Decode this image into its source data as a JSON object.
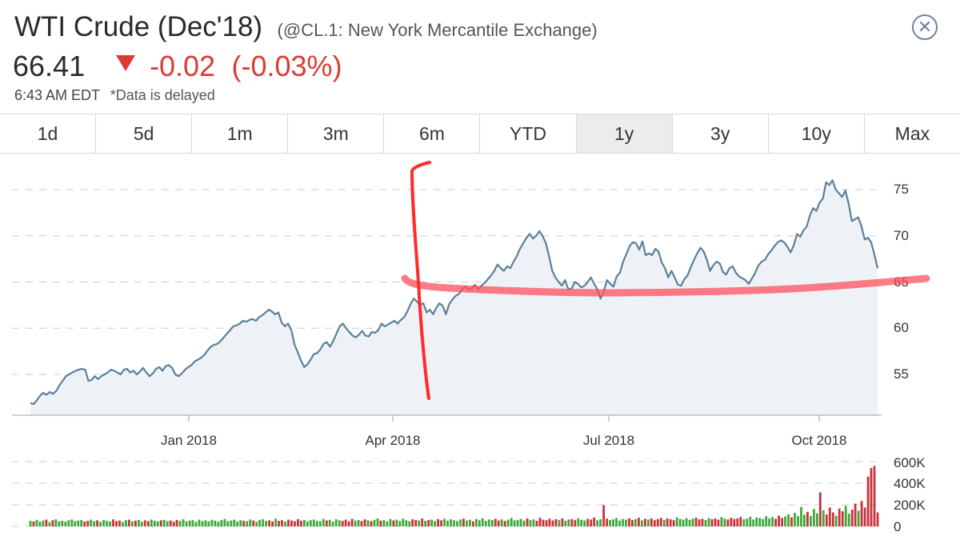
{
  "header": {
    "title": "WTI Crude (Dec'18)",
    "exchange": "(@CL.1: New York Mercantile Exchange)",
    "price": "66.41",
    "change": "-0.02",
    "change_pct": "(-0.03%)",
    "time": "6:43 AM EDT",
    "delayed_note": "*Data is delayed",
    "close_icon": "close-circle-icon"
  },
  "tabs": [
    {
      "label": "1d",
      "active": false
    },
    {
      "label": "5d",
      "active": false
    },
    {
      "label": "1m",
      "active": false
    },
    {
      "label": "3m",
      "active": false
    },
    {
      "label": "6m",
      "active": false
    },
    {
      "label": "YTD",
      "active": false
    },
    {
      "label": "1y",
      "active": true
    },
    {
      "label": "3y",
      "active": false
    },
    {
      "label": "10y",
      "active": false
    },
    {
      "label": "Max",
      "active": false
    }
  ],
  "colors": {
    "price_line": "#5a8099",
    "area_fill": "#eef2f6",
    "volume_up": "#3fa83a",
    "volume_down": "#c8323a",
    "marker": "#ff3b3b",
    "down": "#d93c34"
  },
  "chart_data": [
    {
      "type": "line",
      "y_ticks": [
        55,
        60,
        65,
        70,
        75
      ],
      "y_tick_labels": [
        "55",
        "60",
        "65",
        "70",
        "75"
      ],
      "x_tick_labels": [
        "Jan 2018",
        "Apr 2018",
        "Jul 2018",
        "Oct 2018"
      ],
      "ylim": [
        50.5,
        77
      ],
      "grid": true,
      "series": [
        {
          "x_start": "2017-10-23",
          "x_end": "2018-10-22",
          "values": [
            51.9,
            51.8,
            52.2,
            52.7,
            53.0,
            52.8,
            53.1,
            52.9,
            53.2,
            53.8,
            54.3,
            54.8,
            55.0,
            55.2,
            55.4,
            55.5,
            55.6,
            55.5,
            54.3,
            54.4,
            54.8,
            54.5,
            54.8,
            55.0,
            55.2,
            55.5,
            55.4,
            55.2,
            55.0,
            55.5,
            55.6,
            55.2,
            55.4,
            55.0,
            55.3,
            55.7,
            55.2,
            54.8,
            55.1,
            55.6,
            55.8,
            55.4,
            55.9,
            56.0,
            55.7,
            55.0,
            54.8,
            55.1,
            55.5,
            55.8,
            56.0,
            56.4,
            56.6,
            56.8,
            57.1,
            57.6,
            58.0,
            58.2,
            58.3,
            58.6,
            59.0,
            59.4,
            59.8,
            60.2,
            60.3,
            60.5,
            60.8,
            60.7,
            60.9,
            61.0,
            60.8,
            61.2,
            61.4,
            61.7,
            62.0,
            61.8,
            61.5,
            61.7,
            60.6,
            60.2,
            60.5,
            59.8,
            58.2,
            57.4,
            56.5,
            55.8,
            56.1,
            56.6,
            57.2,
            57.3,
            57.7,
            58.3,
            58.5,
            58.0,
            58.6,
            59.4,
            60.2,
            60.5,
            60.0,
            59.6,
            59.2,
            59.0,
            59.3,
            59.7,
            59.2,
            59.1,
            59.6,
            59.5,
            59.8,
            60.5,
            60.2,
            60.4,
            60.6,
            60.8,
            60.5,
            60.9,
            61.2,
            61.8,
            62.6,
            63.2,
            62.9,
            62.5,
            62.7,
            61.7,
            62.0,
            61.5,
            62.2,
            62.7,
            62.4,
            61.5,
            62.6,
            63.1,
            63.5,
            63.7,
            64.2,
            64.5,
            64.2,
            64.3,
            64.7,
            64.2,
            64.6,
            64.9,
            65.3,
            65.7,
            66.2,
            66.9,
            66.5,
            66.2,
            66.7,
            66.5,
            67.2,
            67.8,
            68.6,
            69.2,
            69.8,
            70.2,
            69.7,
            70.0,
            70.5,
            70.0,
            69.2,
            67.8,
            66.2,
            65.5,
            65.0,
            64.6,
            65.2,
            64.2,
            64.3,
            65.0,
            64.8,
            64.4,
            64.6,
            65.0,
            65.5,
            64.8,
            64.2,
            63.2,
            64.0,
            65.2,
            64.8,
            64.5,
            65.6,
            66.0,
            67.2,
            68.0,
            68.9,
            69.3,
            69.2,
            68.5,
            69.4,
            67.9,
            68.1,
            67.9,
            68.6,
            68.3,
            67.1,
            66.5,
            65.5,
            66.2,
            65.5,
            64.7,
            64.6,
            65.3,
            65.7,
            66.6,
            67.4,
            68.1,
            68.7,
            68.3,
            67.4,
            66.2,
            66.8,
            67.2,
            67.0,
            66.1,
            65.8,
            66.5,
            66.7,
            66.0,
            65.6,
            65.4,
            65.2,
            64.8,
            65.4,
            66.0,
            66.8,
            67.2,
            67.4,
            68.0,
            68.4,
            68.9,
            69.3,
            69.5,
            69.3,
            68.8,
            68.2,
            69.0,
            70.2,
            69.9,
            70.6,
            71.0,
            72.2,
            73.0,
            72.7,
            73.6,
            74.0,
            75.8,
            75.5,
            76.0,
            75.0,
            74.6,
            74.2,
            74.9,
            73.5,
            71.6,
            71.8,
            72.0,
            71.0,
            69.6,
            69.8,
            69.3,
            68.0,
            66.5
          ]
        }
      ]
    },
    {
      "type": "bar",
      "y_ticks": [
        0,
        200000,
        400000,
        600000
      ],
      "y_tick_labels": [
        "0",
        "200K",
        "400K",
        "600K"
      ],
      "ylim": [
        0,
        600000
      ],
      "grid": true,
      "series": [
        {
          "x_start": "2017-10-23",
          "x_end": "2018-10-22",
          "values": [
            52000,
            47000,
            61000,
            43000,
            55000,
            63000,
            40000,
            58000,
            66000,
            47000,
            52000,
            44000,
            57000,
            64000,
            49000,
            54000,
            60000,
            45000,
            51000,
            62000,
            48000,
            56000,
            42000,
            59000,
            53000,
            46000,
            65000,
            50000,
            55000,
            41000,
            58000,
            62000,
            47000,
            53000,
            60000,
            44000,
            56000,
            49000,
            64000,
            52000,
            45000,
            57000,
            61000,
            48000,
            55000,
            43000,
            59000,
            51000,
            66000,
            47000,
            54000,
            58000,
            42000,
            63000,
            50000,
            56000,
            46000,
            61000,
            53000,
            44000,
            59000,
            68000,
            49000,
            55000,
            62000,
            45000,
            57000,
            51000,
            48000,
            64000,
            54000,
            43000,
            60000,
            66000,
            50000,
            56000,
            47000,
            71000,
            52000,
            58000,
            45000,
            63000,
            55000,
            49000,
            67000,
            53000,
            61000,
            46000,
            58000,
            64000,
            51000,
            48000,
            69000,
            55000,
            60000,
            44000,
            66000,
            57000,
            52000,
            62000,
            47000,
            70000,
            54000,
            59000,
            50000,
            65000,
            56000,
            49000,
            61000,
            73000,
            53000,
            58000,
            46000,
            68000,
            55000,
            63000,
            51000,
            71000,
            57000,
            48000,
            66000,
            60000,
            54000,
            74000,
            52000,
            59000,
            62000,
            49000,
            67000,
            56000,
            70000,
            53000,
            65000,
            58000,
            50000,
            63000,
            72000,
            55000,
            61000,
            47000,
            68000,
            57000,
            75000,
            52000,
            64000,
            59000,
            70000,
            54000,
            66000,
            50000,
            62000,
            78000,
            56000,
            60000,
            69000,
            53000,
            73000,
            58000,
            65000,
            51000,
            80000,
            62000,
            57000,
            71000,
            55000,
            67000,
            60000,
            74000,
            52000,
            64000,
            68000,
            58000,
            76000,
            61000,
            55000,
            70000,
            63000,
            82000,
            57000,
            66000,
            196000,
            72000,
            59000,
            65000,
            77000,
            54000,
            69000,
            62000,
            75000,
            60000,
            67000,
            80000,
            56000,
            71000,
            64000,
            73000,
            58000,
            68000,
            79000,
            61000,
            74000,
            66000,
            57000,
            83000,
            69000,
            63000,
            76000,
            60000,
            72000,
            81000,
            65000,
            70000,
            59000,
            78000,
            67000,
            74000,
            62000,
            85000,
            71000,
            64000,
            80000,
            68000,
            75000,
            88000,
            66000,
            72000,
            90000,
            63000,
            82000,
            77000,
            69000,
            95000,
            74000,
            86000,
            70000,
            99000,
            78000,
            92000,
            112000,
            84000,
            125000,
            95000,
            180000,
            108000,
            135000,
            96000,
            160000,
            120000,
            315000,
            150000,
            110000,
            175000,
            130000,
            98000,
            165000,
            140000,
            190000,
            118000,
            155000,
            210000,
            145000,
            235000,
            175000,
            460000,
            540000,
            560000,
            130000
          ]
        }
      ]
    }
  ]
}
